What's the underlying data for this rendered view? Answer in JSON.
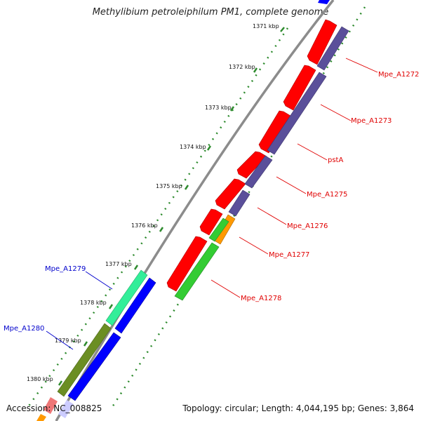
{
  "title": "Methylibium petroleiphilum PM1, complete genome",
  "accession_label": "Accession: NC_008825",
  "summary_label": "Topology: circular; Length: 4,044,195 bp; Genes: 3,864",
  "kbp_ticks": [
    {
      "label": "1371 kbp"
    },
    {
      "label": "1372 kbp"
    },
    {
      "label": "1373 kbp"
    },
    {
      "label": "1374 kbp"
    },
    {
      "label": "1375 kbp"
    },
    {
      "label": "1376 kbp"
    },
    {
      "label": "1377 kbp"
    },
    {
      "label": "1378 kbp"
    },
    {
      "label": "1379 kbp"
    },
    {
      "label": "1380 kbp"
    }
  ],
  "gene_labels": [
    {
      "name": "Mpe_A1272",
      "color": "#e00000"
    },
    {
      "name": "Mpe_A1273",
      "color": "#e00000"
    },
    {
      "name": "pstA",
      "color": "#e00000"
    },
    {
      "name": "Mpe_A1275",
      "color": "#e00000"
    },
    {
      "name": "Mpe_A1276",
      "color": "#e00000"
    },
    {
      "name": "Mpe_A1277",
      "color": "#e00000"
    },
    {
      "name": "Mpe_A1278",
      "color": "#e00000"
    },
    {
      "name": "Mpe_A1279",
      "color": "#0000cc"
    },
    {
      "name": "Mpe_A1280",
      "color": "#0000cc"
    }
  ],
  "colors": {
    "backbone": "#8c8c8c",
    "forward_cds": "#ff0000",
    "reverse_cds": "#0000ff",
    "cog_purple": "#5a4f9a",
    "cog_green": "#33cc33",
    "cog_orange": "#ff9900",
    "cog_teal": "#33ee99",
    "cog_olive": "#6b8e23",
    "tick_green": "#2e8b2e"
  }
}
